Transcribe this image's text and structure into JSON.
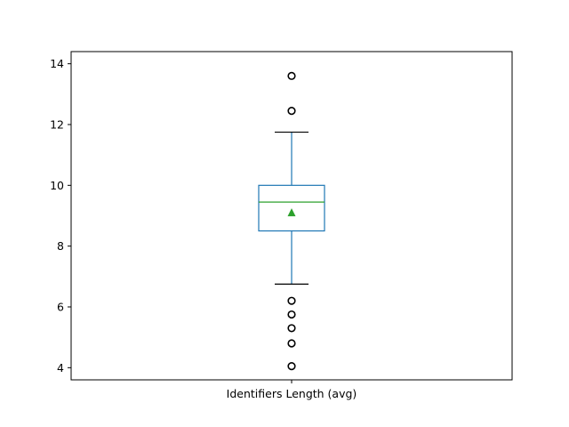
{
  "chart_data": {
    "type": "box",
    "title": "",
    "xlabel": "",
    "ylabel": "",
    "categories": [
      "Identifiers Length (avg)"
    ],
    "ylim": [
      3.6,
      14.4
    ],
    "y_ticks": [
      "4",
      "6",
      "8",
      "10",
      "12",
      "14"
    ],
    "grid": false,
    "series": [
      {
        "whisker_low": 6.75,
        "q1": 8.5,
        "median": 9.45,
        "mean": 9.1,
        "q3": 10.0,
        "whisker_high": 11.75,
        "outliers": [
          4.05,
          4.8,
          5.3,
          5.75,
          6.2,
          12.45,
          13.6
        ]
      }
    ],
    "colors": {
      "box": "#1f77b4",
      "median": "#2ca02c",
      "mean_marker": "#2ca02c",
      "whisker_cap": "#000000",
      "outlier": "#000000"
    }
  }
}
